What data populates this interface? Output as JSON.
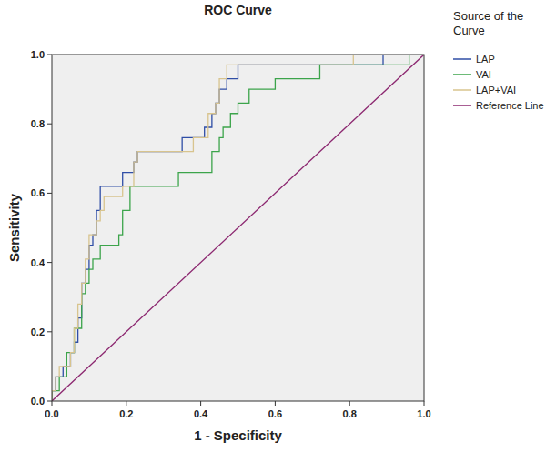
{
  "chart_data": {
    "type": "line",
    "title": "ROC Curve",
    "x_label": "1 - Specificity",
    "y_label": "Sensitivity",
    "legend_title": "Source of the Curve",
    "legend": "right",
    "grid": false,
    "xlim": [
      0,
      1
    ],
    "ylim": [
      0,
      1
    ],
    "xticks": [
      {
        "value": 0,
        "label": "0.0"
      },
      {
        "value": 0.2,
        "label": "0.2"
      },
      {
        "value": 0.4,
        "label": "0.4"
      },
      {
        "value": 0.6,
        "label": "0.6"
      },
      {
        "value": 0.8,
        "label": "0.8"
      },
      {
        "value": 1,
        "label": "1.0"
      }
    ],
    "yticks": [
      {
        "value": 0,
        "label": "0.0"
      },
      {
        "value": 0.2,
        "label": "0.2"
      },
      {
        "value": 0.4,
        "label": "0.4"
      },
      {
        "value": 0.6,
        "label": "0.6"
      },
      {
        "value": 0.8,
        "label": "0.8"
      },
      {
        "value": 1,
        "label": "1.0"
      }
    ],
    "series": [
      {
        "name": "LAP",
        "color": "#2f4ea6",
        "x": [
          0,
          0,
          0.01,
          0.01,
          0.03,
          0.03,
          0.05,
          0.05,
          0.06,
          0.06,
          0.07,
          0.07,
          0.08,
          0.08,
          0.09,
          0.09,
          0.1,
          0.1,
          0.11,
          0.11,
          0.12,
          0.12,
          0.13,
          0.13,
          0.19,
          0.19,
          0.22,
          0.22,
          0.23,
          0.23,
          0.35,
          0.35,
          0.41,
          0.41,
          0.43,
          0.43,
          0.44,
          0.44,
          0.45,
          0.45,
          0.47,
          0.47,
          0.5,
          0.5,
          0.89,
          0.89,
          1
        ],
        "values": [
          0,
          0.03,
          0.03,
          0.07,
          0.07,
          0.1,
          0.1,
          0.14,
          0.14,
          0.17,
          0.17,
          0.24,
          0.24,
          0.34,
          0.34,
          0.38,
          0.38,
          0.45,
          0.45,
          0.48,
          0.48,
          0.55,
          0.55,
          0.62,
          0.62,
          0.66,
          0.66,
          0.69,
          0.69,
          0.72,
          0.72,
          0.76,
          0.76,
          0.79,
          0.79,
          0.83,
          0.83,
          0.86,
          0.86,
          0.9,
          0.9,
          0.93,
          0.93,
          0.97,
          0.97,
          1,
          1
        ]
      },
      {
        "name": "VAI",
        "color": "#3ca44b",
        "x": [
          0,
          0,
          0.02,
          0.02,
          0.04,
          0.04,
          0.06,
          0.06,
          0.08,
          0.08,
          0.09,
          0.09,
          0.1,
          0.1,
          0.11,
          0.11,
          0.13,
          0.13,
          0.18,
          0.18,
          0.19,
          0.19,
          0.21,
          0.21,
          0.34,
          0.34,
          0.43,
          0.43,
          0.45,
          0.45,
          0.46,
          0.46,
          0.48,
          0.48,
          0.5,
          0.5,
          0.53,
          0.53,
          0.6,
          0.6,
          0.72,
          0.72,
          0.96,
          0.96,
          1
        ],
        "values": [
          0,
          0.03,
          0.03,
          0.07,
          0.07,
          0.14,
          0.14,
          0.21,
          0.21,
          0.31,
          0.31,
          0.34,
          0.34,
          0.38,
          0.38,
          0.41,
          0.41,
          0.45,
          0.45,
          0.48,
          0.48,
          0.55,
          0.55,
          0.62,
          0.62,
          0.66,
          0.66,
          0.72,
          0.72,
          0.76,
          0.76,
          0.79,
          0.79,
          0.83,
          0.83,
          0.86,
          0.86,
          0.9,
          0.9,
          0.93,
          0.93,
          0.97,
          0.97,
          1,
          1
        ]
      },
      {
        "name": "LAP+VAI",
        "color": "#d8c48e",
        "x": [
          0,
          0,
          0.01,
          0.01,
          0.02,
          0.02,
          0.05,
          0.05,
          0.06,
          0.06,
          0.07,
          0.07,
          0.08,
          0.08,
          0.09,
          0.09,
          0.1,
          0.1,
          0.12,
          0.12,
          0.13,
          0.13,
          0.14,
          0.14,
          0.19,
          0.19,
          0.22,
          0.22,
          0.23,
          0.23,
          0.38,
          0.38,
          0.42,
          0.42,
          0.44,
          0.44,
          0.45,
          0.45,
          0.47,
          0.47,
          0.81,
          0.81,
          1
        ],
        "values": [
          0,
          0.03,
          0.03,
          0.07,
          0.07,
          0.1,
          0.1,
          0.14,
          0.14,
          0.21,
          0.21,
          0.28,
          0.28,
          0.34,
          0.34,
          0.41,
          0.41,
          0.48,
          0.48,
          0.52,
          0.52,
          0.55,
          0.55,
          0.59,
          0.59,
          0.62,
          0.62,
          0.69,
          0.69,
          0.72,
          0.72,
          0.76,
          0.76,
          0.83,
          0.83,
          0.86,
          0.86,
          0.93,
          0.93,
          0.97,
          0.97,
          1,
          1
        ]
      },
      {
        "name": "Reference Line",
        "color": "#8c2870",
        "x": [
          0,
          1
        ],
        "values": [
          0,
          1
        ]
      }
    ]
  }
}
